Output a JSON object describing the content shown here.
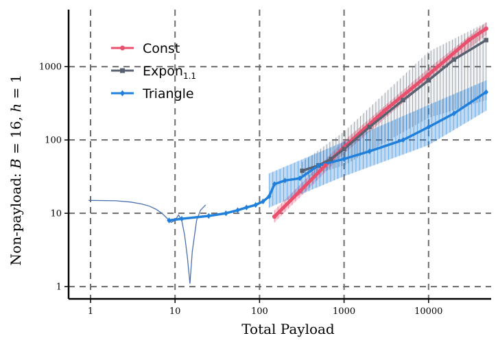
{
  "chart_data": {
    "type": "line",
    "x_scale": "log",
    "y_scale": "log",
    "xlabel": "Total Payload",
    "ylabel_parts": [
      "Non-payload: ",
      "B",
      " = 16, ",
      "h",
      " = 1"
    ],
    "xlim": [
      0.55,
      55000
    ],
    "ylim": [
      0.68,
      6000
    ],
    "x_ticks": [
      1,
      10,
      100,
      1000,
      10000
    ],
    "x_tick_labels": [
      "1",
      "10",
      "100",
      "1000",
      "10000"
    ],
    "y_ticks": [
      1,
      10,
      100,
      1000
    ],
    "y_tick_labels": [
      "1",
      "10",
      "100",
      "1000"
    ],
    "grid": true,
    "legend_position": "top-left",
    "series": [
      {
        "name": "Const",
        "legend_parts": [
          "Const",
          ""
        ],
        "color": "#e8506e",
        "marker": "circle",
        "line": [
          [
            150,
            9
          ],
          [
            300,
            20
          ],
          [
            600,
            45
          ],
          [
            1000,
            80
          ],
          [
            3000,
            250
          ],
          [
            10000,
            780
          ],
          [
            30000,
            2300
          ],
          [
            48000,
            3300
          ]
        ],
        "band": [
          [
            150,
            7.5,
            11
          ],
          [
            1000,
            65,
            98
          ],
          [
            10000,
            640,
            950
          ],
          [
            48000,
            2700,
            4000
          ]
        ]
      },
      {
        "name": "Expon1.1",
        "legend_parts": [
          "Expon",
          "1.1"
        ],
        "color": "#58616f",
        "marker": "square",
        "line": [
          [
            320,
            38
          ],
          [
            500,
            45
          ],
          [
            700,
            55
          ],
          [
            1000,
            75
          ],
          [
            2000,
            150
          ],
          [
            5000,
            350
          ],
          [
            10000,
            650
          ],
          [
            20000,
            1250
          ],
          [
            48000,
            2300
          ]
        ],
        "band": [
          [
            320,
            30,
            50
          ],
          [
            1000,
            45,
            130
          ],
          [
            10000,
            200,
            1600
          ],
          [
            48000,
            350,
            4000
          ]
        ]
      },
      {
        "name": "Triangle",
        "legend_parts": [
          "Triangle",
          ""
        ],
        "color": "#1f7fdb",
        "marker": "diamond",
        "line": [
          [
            8.5,
            8
          ],
          [
            12,
            8.4
          ],
          [
            25,
            9.2
          ],
          [
            40,
            10
          ],
          [
            55,
            11
          ],
          [
            70,
            12
          ],
          [
            90,
            13
          ],
          [
            110,
            14.5
          ],
          [
            130,
            17
          ],
          [
            150,
            25
          ],
          [
            200,
            28
          ],
          [
            300,
            30
          ],
          [
            500,
            45
          ],
          [
            1000,
            55
          ],
          [
            2000,
            70
          ],
          [
            5000,
            100
          ],
          [
            10000,
            150
          ],
          [
            20000,
            230
          ],
          [
            48000,
            450
          ]
        ],
        "band": [
          [
            130,
            12,
            35
          ],
          [
            1000,
            32,
            95
          ],
          [
            10000,
            85,
            300
          ],
          [
            48000,
            250,
            650
          ]
        ]
      }
    ],
    "extra_curve": {
      "color": "#4a6fae",
      "points": [
        [
          0.95,
          15
        ],
        [
          2,
          14.8
        ],
        [
          3,
          14.2
        ],
        [
          4,
          13.4
        ],
        [
          5,
          12.5
        ],
        [
          6,
          11.3
        ],
        [
          7,
          10
        ],
        [
          8,
          8.6
        ],
        [
          9,
          7.5
        ],
        [
          10,
          8
        ],
        [
          11,
          9.5
        ],
        [
          12,
          8
        ],
        [
          13,
          5
        ],
        [
          14,
          2.5
        ],
        [
          15,
          1.1
        ],
        [
          16,
          3
        ],
        [
          18,
          8
        ],
        [
          20,
          11
        ],
        [
          23,
          13
        ]
      ]
    }
  }
}
